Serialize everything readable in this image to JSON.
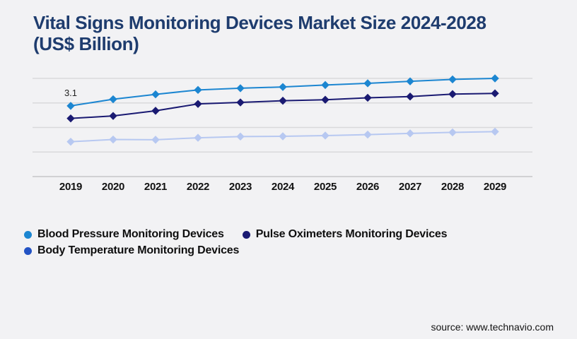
{
  "header": {
    "title_line1": "Vital Signs Monitoring Devices Market Size 2024-2028",
    "title_line2": "(US$ Billion)"
  },
  "chart_data": {
    "type": "line",
    "title": "Vital Signs Monitoring Devices Market Size 2024-2028 (US$ Billion)",
    "x": [
      2019,
      2020,
      2021,
      2022,
      2023,
      2024,
      2025,
      2026,
      2027,
      2028,
      2029
    ],
    "ylim": [
      0.22,
      4.22
    ],
    "grid": true,
    "gridline_count": 5,
    "legend_position": "bottom",
    "marker": "diamond",
    "series": [
      {
        "name": "Blood Pressure Monitoring Devices",
        "color": "#1c86d1",
        "values": [
          3.1,
          3.37,
          3.57,
          3.75,
          3.82,
          3.87,
          3.95,
          4.02,
          4.1,
          4.18,
          4.22
        ]
      },
      {
        "name": "Pulse Oximeters Monitoring Devices",
        "color": "#1a1a72",
        "values": [
          2.59,
          2.69,
          2.9,
          3.18,
          3.24,
          3.31,
          3.35,
          3.43,
          3.48,
          3.58,
          3.61
        ]
      },
      {
        "name": "Body Temperature Monitoring Devices",
        "color": "#b7c8f1",
        "legend_color": "#2353c4",
        "values": [
          1.64,
          1.73,
          1.72,
          1.8,
          1.85,
          1.86,
          1.89,
          1.93,
          1.98,
          2.02,
          2.05
        ]
      }
    ],
    "annotation": {
      "text": "3.1",
      "series_index": 0,
      "x_index": 0
    }
  },
  "source": {
    "text": "source: www.technavio.com"
  },
  "colors": {
    "background": "#f2f2f4",
    "title": "#1e3c6e",
    "gridline": "#d9d9db",
    "axis_line": "#c6c6c8",
    "tick_label": "#121212",
    "legend_text": "#0f0f0f",
    "annotation_text": "#222222",
    "source_text": "#141414"
  }
}
